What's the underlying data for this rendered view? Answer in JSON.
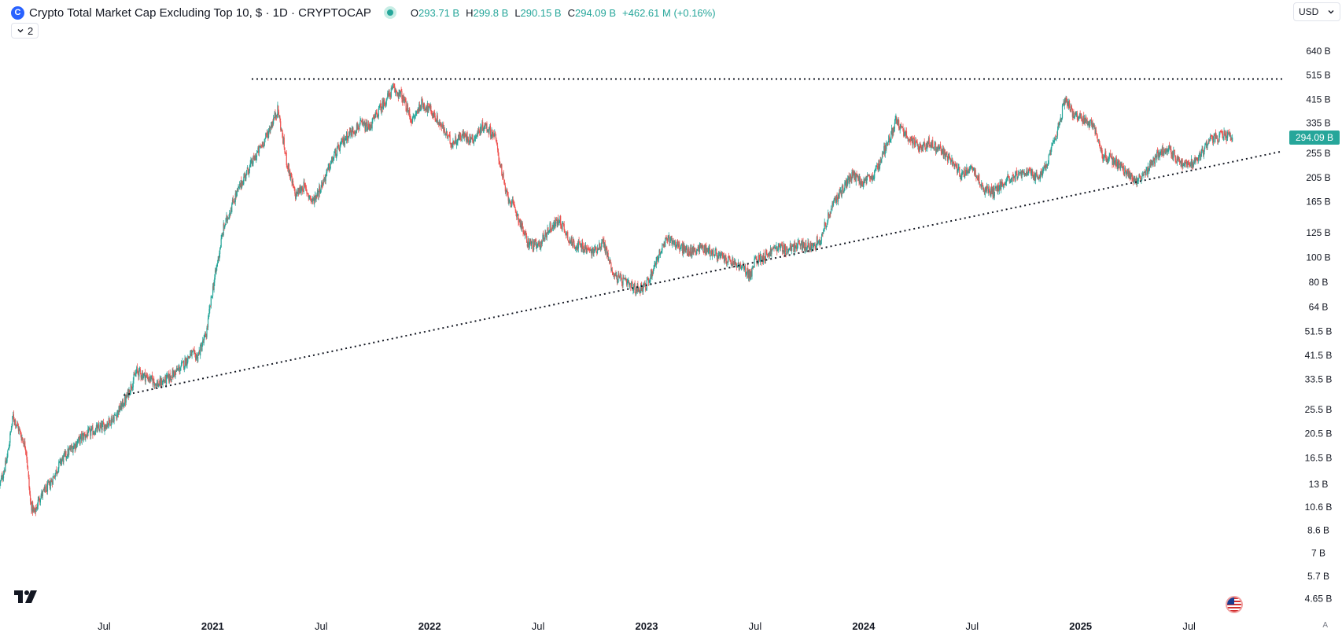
{
  "header": {
    "logo_letter": "C",
    "title": "Crypto Total Market Cap Excluding Top 10, $ · 1D · CRYPTOCAP",
    "ohlc": [
      {
        "key": "O",
        "value": "293.71 B"
      },
      {
        "key": "H",
        "value": "299.8 B"
      },
      {
        "key": "L",
        "value": "290.15 B"
      },
      {
        "key": "C",
        "value": "294.09 B"
      }
    ],
    "change": "+462.61 M (+0.16%)",
    "indicator_count": "2",
    "currency": "USD",
    "auto_label": "A"
  },
  "colors": {
    "up": "#26a69a",
    "down": "#ef5350",
    "price_tag": "#26a69a",
    "trendline": "#131722"
  },
  "icons": [
    "cryptocap-logo-icon",
    "live-status-icon",
    "chevron-down-icon",
    "tradingview-logo-icon",
    "us-flag-icon"
  ],
  "chart_data": {
    "type": "candlestick",
    "title": "Crypto Total Market Cap Excluding Top 10",
    "interval": "1D",
    "y_scale": "log",
    "ylim": [
      4.2,
      780
    ],
    "y_unit": "B (USD)",
    "y_tick_labels": [
      "640 B",
      "515 B",
      "415 B",
      "335 B",
      "255 B",
      "205 B",
      "165 B",
      "125 B",
      "100 B",
      "80 B",
      "64 B",
      "51.5 B",
      "41.5 B",
      "33.5 B",
      "25.5 B",
      "20.5 B",
      "16.5 B",
      "13 B",
      "10.6 B",
      "8.6 B",
      "7 B",
      "5.7 B",
      "4.65 B"
    ],
    "y_tick_values": [
      640,
      515,
      415,
      335,
      255,
      205,
      165,
      125,
      100,
      80,
      64,
      51.5,
      41.5,
      33.5,
      25.5,
      20.5,
      16.5,
      13,
      10.6,
      8.6,
      7,
      5.7,
      4.65
    ],
    "x_range": [
      2020.02,
      2025.94
    ],
    "x_ticks": [
      {
        "label": "Jul",
        "t": 2020.5,
        "year": false
      },
      {
        "label": "2021",
        "t": 2021.0,
        "year": true
      },
      {
        "label": "Jul",
        "t": 2021.5,
        "year": false
      },
      {
        "label": "2022",
        "t": 2022.0,
        "year": true
      },
      {
        "label": "Jul",
        "t": 2022.5,
        "year": false
      },
      {
        "label": "2023",
        "t": 2023.0,
        "year": true
      },
      {
        "label": "Jul",
        "t": 2023.5,
        "year": false
      },
      {
        "label": "2024",
        "t": 2024.0,
        "year": true
      },
      {
        "label": "Jul",
        "t": 2024.5,
        "year": false
      },
      {
        "label": "2025",
        "t": 2025.0,
        "year": true
      },
      {
        "label": "Jul",
        "t": 2025.5,
        "year": false
      }
    ],
    "price_path": [
      [
        2020.02,
        13
      ],
      [
        2020.05,
        16
      ],
      [
        2020.08,
        24
      ],
      [
        2020.1,
        22
      ],
      [
        2020.14,
        18
      ],
      [
        2020.16,
        11
      ],
      [
        2020.18,
        10
      ],
      [
        2020.2,
        11.5
      ],
      [
        2020.25,
        13
      ],
      [
        2020.3,
        16
      ],
      [
        2020.35,
        18
      ],
      [
        2020.4,
        20
      ],
      [
        2020.45,
        21
      ],
      [
        2020.5,
        22
      ],
      [
        2020.55,
        24
      ],
      [
        2020.6,
        28
      ],
      [
        2020.65,
        36
      ],
      [
        2020.7,
        34
      ],
      [
        2020.75,
        32
      ],
      [
        2020.8,
        34
      ],
      [
        2020.85,
        37
      ],
      [
        2020.9,
        42
      ],
      [
        2020.93,
        41
      ],
      [
        2020.97,
        50
      ],
      [
        2021.0,
        75
      ],
      [
        2021.05,
        130
      ],
      [
        2021.1,
        170
      ],
      [
        2021.15,
        210
      ],
      [
        2021.2,
        250
      ],
      [
        2021.25,
        300
      ],
      [
        2021.3,
        380
      ],
      [
        2021.34,
        240
      ],
      [
        2021.38,
        175
      ],
      [
        2021.42,
        190
      ],
      [
        2021.46,
        165
      ],
      [
        2021.5,
        190
      ],
      [
        2021.56,
        250
      ],
      [
        2021.62,
        300
      ],
      [
        2021.68,
        330
      ],
      [
        2021.72,
        320
      ],
      [
        2021.77,
        380
      ],
      [
        2021.83,
        455
      ],
      [
        2021.87,
        430
      ],
      [
        2021.92,
        340
      ],
      [
        2021.96,
        400
      ],
      [
        2022.0,
        380
      ],
      [
        2022.05,
        330
      ],
      [
        2022.1,
        280
      ],
      [
        2022.15,
        300
      ],
      [
        2022.2,
        290
      ],
      [
        2022.25,
        330
      ],
      [
        2022.3,
        300
      ],
      [
        2022.35,
        180
      ],
      [
        2022.4,
        150
      ],
      [
        2022.45,
        115
      ],
      [
        2022.5,
        110
      ],
      [
        2022.55,
        130
      ],
      [
        2022.6,
        140
      ],
      [
        2022.65,
        115
      ],
      [
        2022.7,
        110
      ],
      [
        2022.75,
        105
      ],
      [
        2022.8,
        115
      ],
      [
        2022.85,
        85
      ],
      [
        2022.9,
        80
      ],
      [
        2022.95,
        75
      ],
      [
        2023.0,
        78
      ],
      [
        2023.05,
        100
      ],
      [
        2023.1,
        120
      ],
      [
        2023.15,
        110
      ],
      [
        2023.2,
        105
      ],
      [
        2023.25,
        110
      ],
      [
        2023.3,
        105
      ],
      [
        2023.35,
        100
      ],
      [
        2023.4,
        95
      ],
      [
        2023.45,
        90
      ],
      [
        2023.48,
        85
      ],
      [
        2023.5,
        98
      ],
      [
        2023.55,
        102
      ],
      [
        2023.6,
        110
      ],
      [
        2023.65,
        107
      ],
      [
        2023.7,
        112
      ],
      [
        2023.75,
        110
      ],
      [
        2023.8,
        118
      ],
      [
        2023.85,
        155
      ],
      [
        2023.9,
        185
      ],
      [
        2023.95,
        210
      ],
      [
        2024.0,
        195
      ],
      [
        2024.05,
        210
      ],
      [
        2024.1,
        270
      ],
      [
        2024.15,
        340
      ],
      [
        2024.2,
        300
      ],
      [
        2024.25,
        270
      ],
      [
        2024.3,
        280
      ],
      [
        2024.35,
        265
      ],
      [
        2024.4,
        240
      ],
      [
        2024.45,
        210
      ],
      [
        2024.5,
        230
      ],
      [
        2024.55,
        185
      ],
      [
        2024.6,
        180
      ],
      [
        2024.65,
        200
      ],
      [
        2024.7,
        210
      ],
      [
        2024.75,
        215
      ],
      [
        2024.8,
        205
      ],
      [
        2024.85,
        235
      ],
      [
        2024.9,
        330
      ],
      [
        2024.93,
        420
      ],
      [
        2024.97,
        360
      ],
      [
        2025.02,
        340
      ],
      [
        2025.06,
        330
      ],
      [
        2025.1,
        250
      ],
      [
        2025.15,
        240
      ],
      [
        2025.2,
        220
      ],
      [
        2025.25,
        200
      ],
      [
        2025.3,
        210
      ],
      [
        2025.35,
        250
      ],
      [
        2025.4,
        270
      ],
      [
        2025.45,
        240
      ],
      [
        2025.5,
        230
      ],
      [
        2025.55,
        250
      ],
      [
        2025.6,
        290
      ],
      [
        2025.65,
        300
      ],
      [
        2025.7,
        294.09
      ]
    ],
    "annotations": {
      "resistance_line": {
        "from": [
          2021.18,
          498
        ],
        "to": [
          2025.93,
          498
        ],
        "style": "dotted"
      },
      "support_line": {
        "from": [
          2020.59,
          29
        ],
        "to": [
          2025.93,
          260
        ],
        "style": "dotted"
      }
    },
    "last_price": 294.09,
    "last_price_label": "294.09 B"
  }
}
